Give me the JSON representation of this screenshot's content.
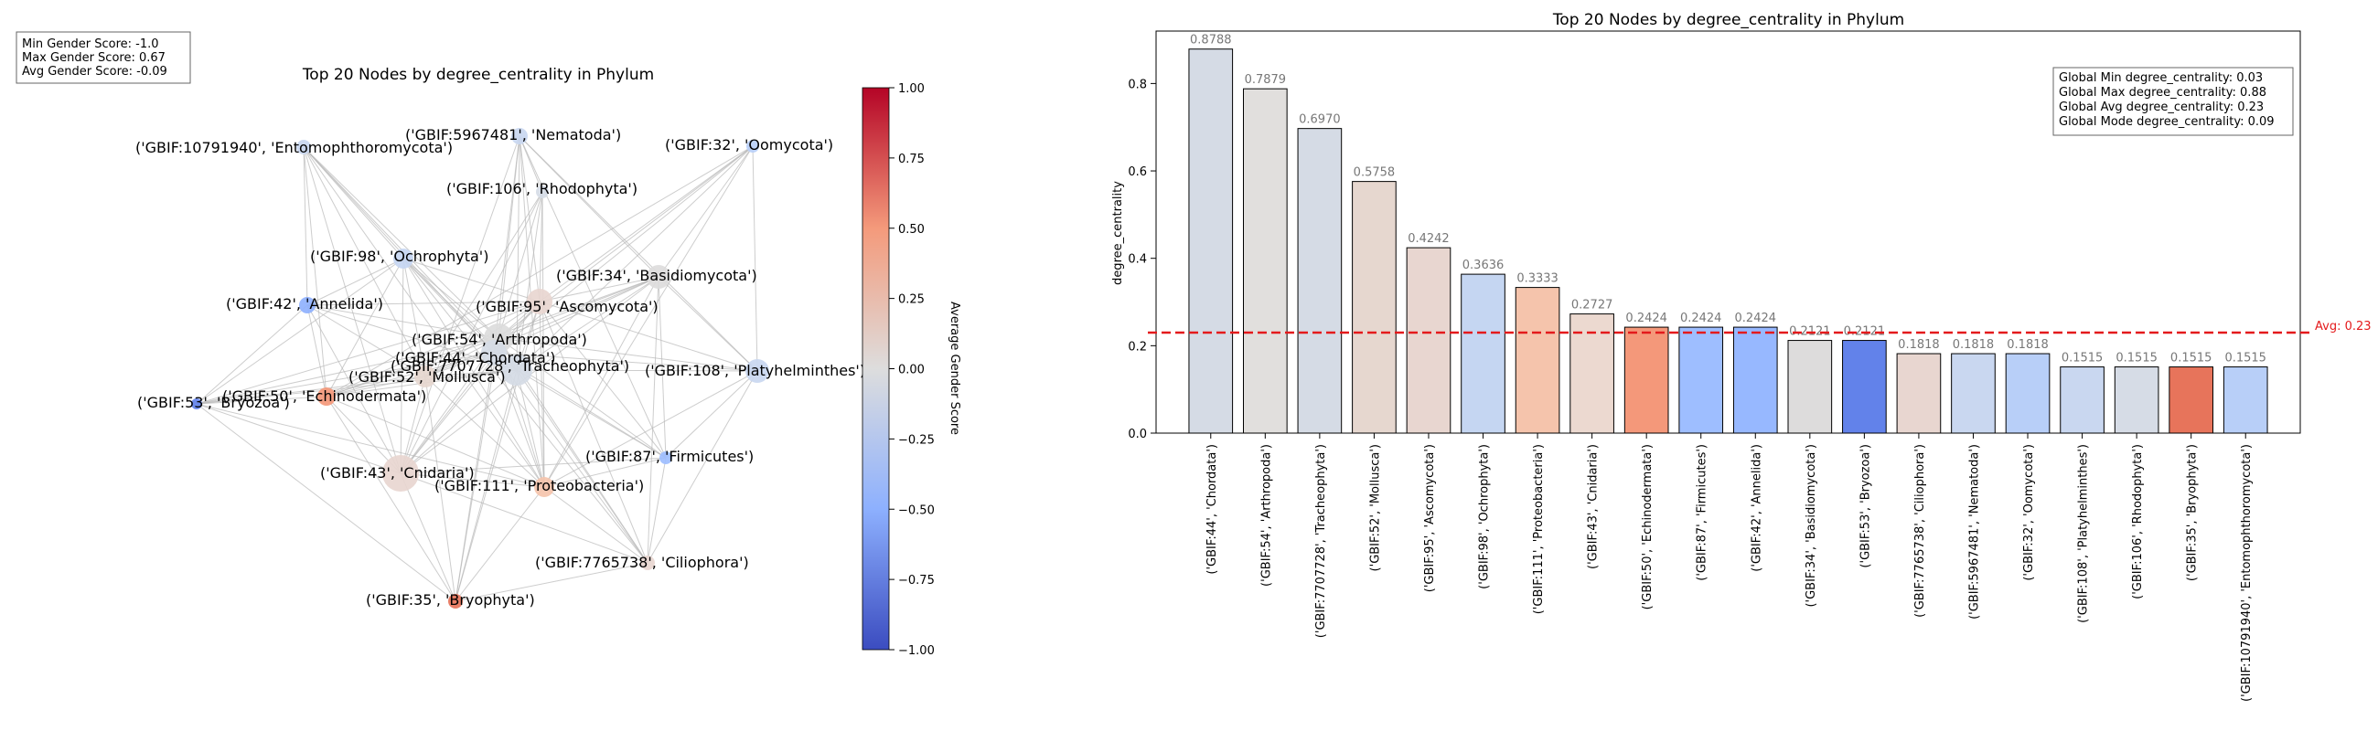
{
  "network": {
    "title": "Top 20 Nodes by degree_centrality in Phylum",
    "stats": [
      "Min Gender Score: -1.0",
      "Max Gender Score: 0.67",
      "Avg Gender Score: -0.09"
    ],
    "colorbar": {
      "label": "Average Gender Score",
      "ticks": [
        "1.00",
        "0.75",
        "0.50",
        "0.25",
        "0.00",
        "−0.25",
        "−0.50",
        "−0.75",
        "−1.00"
      ]
    }
  },
  "bars": {
    "title": "Top 20 Nodes by degree_centrality in Phylum",
    "ylabel": "degree_centrality",
    "yticks": [
      "0.0",
      "0.2",
      "0.4",
      "0.6",
      "0.8"
    ],
    "avg_label": "Avg: 0.23",
    "stats": [
      "Global Min degree_centrality: 0.03",
      "Global Max degree_centrality: 0.88",
      "Global Avg degree_centrality: 0.23",
      "Global Mode degree_centrality: 0.09"
    ]
  },
  "chart_data": [
    {
      "type": "network",
      "title": "Top 20 Nodes by degree_centrality in Phylum",
      "colorbar_label": "Average Gender Score",
      "colorbar_range": [
        -1.0,
        1.0
      ],
      "nodes": [
        {
          "label": "('GBIF:10791940', 'Entomophthoromycota')",
          "color": "#c9d7f0"
        },
        {
          "label": "('GBIF:5967481', 'Nematoda')",
          "color": "#c9d7f0"
        },
        {
          "label": "('GBIF:32', 'Oomycota')",
          "color": "#b8cff8"
        },
        {
          "label": "('GBIF:106', 'Rhodophyta')",
          "color": "#d6dce6"
        },
        {
          "label": "('GBIF:98', 'Ochrophyta')",
          "color": "#c5d6f2"
        },
        {
          "label": "('GBIF:34', 'Basidiomycota')",
          "color": "#dddcdc"
        },
        {
          "label": "('GBIF:42', 'Annelida')",
          "color": "#8fb1fe"
        },
        {
          "label": "('GBIF:95', 'Ascomycota')",
          "color": "#e8d6d0"
        },
        {
          "label": "('GBIF:54', 'Arthropoda')",
          "color": "#dcdcdc"
        },
        {
          "label": "('GBIF:44', 'Chordata')",
          "color": "#d5dbe5"
        },
        {
          "label": "('GBIF:7707728', 'Tracheophyta')",
          "color": "#d5dbe5"
        },
        {
          "label": "('GBIF:108', 'Platyhelminthes')",
          "color": "#c9d7f0"
        },
        {
          "label": "('GBIF:52', 'Mollusca')",
          "color": "#e6d7cf"
        },
        {
          "label": "('GBIF:50', 'Echinodermata')",
          "color": "#f4987a"
        },
        {
          "label": "('GBIF:53', 'Bryozoa')",
          "color": "#6282ea"
        },
        {
          "label": "('GBIF:87', 'Firmicutes')",
          "color": "#9ebeff"
        },
        {
          "label": "('GBIF:43', 'Cnidaria')",
          "color": "#e8d6d0"
        },
        {
          "label": "('GBIF:111', 'Proteobacteria')",
          "color": "#f5c4ac"
        },
        {
          "label": "('GBIF:7765738', 'Ciliophora')",
          "color": "#e8d6d0"
        },
        {
          "label": "('GBIF:35', 'Bryophyta')",
          "color": "#e7745b"
        }
      ]
    },
    {
      "type": "bar",
      "title": "Top 20 Nodes by degree_centrality in Phylum",
      "xlabel": "",
      "ylabel": "degree_centrality",
      "ylim": [
        0,
        0.92
      ],
      "avg_line": 0.23,
      "categories": [
        "('GBIF:44', 'Chordata')",
        "('GBIF:54', 'Arthropoda')",
        "('GBIF:7707728', 'Tracheophyta')",
        "('GBIF:52', 'Mollusca')",
        "('GBIF:95', 'Ascomycota')",
        "('GBIF:98', 'Ochrophyta')",
        "('GBIF:111', 'Proteobacteria')",
        "('GBIF:43', 'Cnidaria')",
        "('GBIF:50', 'Echinodermata')",
        "('GBIF:87', 'Firmicutes')",
        "('GBIF:42', 'Annelida')",
        "('GBIF:34', 'Basidiomycota')",
        "('GBIF:53', 'Bryozoa')",
        "('GBIF:7765738', 'Ciliophora')",
        "('GBIF:5967481', 'Nematoda')",
        "('GBIF:32', 'Oomycota')",
        "('GBIF:108', 'Platyhelminthes')",
        "('GBIF:106', 'Rhodophyta')",
        "('GBIF:35', 'Bryophyta')",
        "('GBIF:10791940', 'Entomophthoromycota')"
      ],
      "values": [
        0.8788,
        0.7879,
        0.697,
        0.5758,
        0.4242,
        0.3636,
        0.3333,
        0.2727,
        0.2424,
        0.2424,
        0.2424,
        0.2121,
        0.2121,
        0.1818,
        0.1818,
        0.1818,
        0.1515,
        0.1515,
        0.1515,
        0.1515
      ],
      "value_labels": [
        "0.8788",
        "0.7879",
        "0.6970",
        "0.5758",
        "0.4242",
        "0.3636",
        "0.3333",
        "0.2727",
        "0.2424",
        "0.2424",
        "0.2424",
        "0.2121",
        "0.2121",
        "0.1818",
        "0.1818",
        "0.1818",
        "0.1515",
        "0.1515",
        "0.1515",
        "0.1515"
      ],
      "colors": [
        "#d5dbe5",
        "#e1dfdd",
        "#d5dbe5",
        "#e6d7cf",
        "#e8d6d0",
        "#c5d6f2",
        "#f5c4ac",
        "#ecd9d0",
        "#f4987a",
        "#9ebeff",
        "#97b8ff",
        "#dddcdc",
        "#6282ea",
        "#e8d6d0",
        "#c9d7f0",
        "#b8cff8",
        "#c9d7f0",
        "#d6dce6",
        "#e7745b",
        "#b8cff8"
      ]
    }
  ]
}
